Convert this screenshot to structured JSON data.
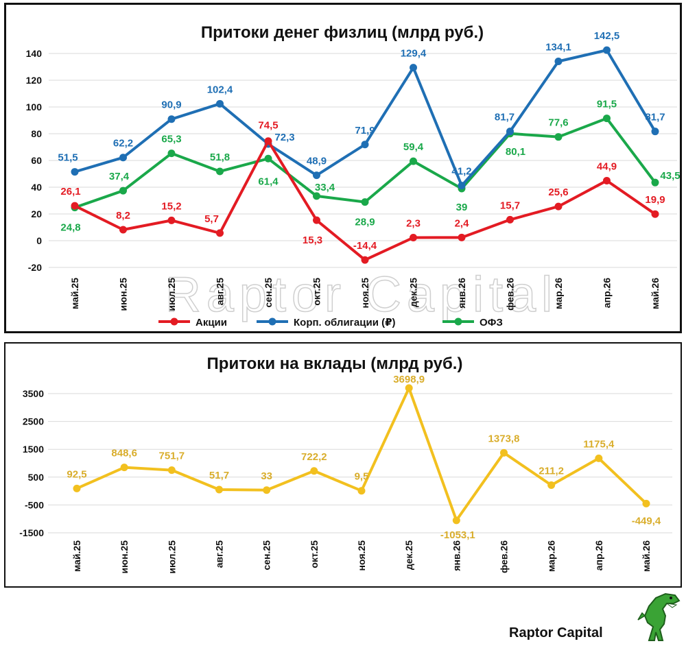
{
  "chart_data": [
    {
      "type": "line",
      "title": "Притоки денег физлиц (млрд руб.)",
      "categories": [
        "май.25",
        "июн.25",
        "июл.25",
        "авг.25",
        "сен.25",
        "окт.25",
        "ноя.25",
        "дек.25",
        "янв.26",
        "фев.26",
        "мар.26",
        "апр.26",
        "май.26"
      ],
      "ylim": [
        -20,
        140
      ],
      "yticks": [
        "-20",
        "0",
        "20",
        "40",
        "60",
        "80",
        "100",
        "120",
        "140"
      ],
      "grid": true,
      "legend": "bottom",
      "series": [
        {
          "name": "Акции",
          "color": "#e31b23",
          "values": [
            26.1,
            8.2,
            15.2,
            5.7,
            74.5,
            15.3,
            -14.4,
            2.3,
            2.4,
            15.7,
            25.6,
            44.9,
            19.9
          ],
          "labels": [
            "26,1",
            "8,2",
            "15,2",
            "5,7",
            "74,5",
            "15,3",
            "-14,4",
            "2,3",
            "2,4",
            "15,7",
            "25,6",
            "44,9",
            "19,9"
          ]
        },
        {
          "name": "Корп. облигации (₽)",
          "color": "#1f6fb4",
          "values": [
            51.5,
            62.2,
            90.9,
            102.4,
            72.3,
            48.9,
            71.9,
            129.4,
            41.2,
            81.7,
            134.1,
            142.5,
            81.7
          ],
          "labels": [
            "51,5",
            "62,2",
            "90,9",
            "102,4",
            "72,3",
            "48,9",
            "71,9",
            "129,4",
            "41,2",
            "81,7",
            "134,1",
            "142,5",
            "81,7"
          ]
        },
        {
          "name": "ОФЗ",
          "color": "#1aa84a",
          "values": [
            24.8,
            37.4,
            65.3,
            51.8,
            61.4,
            33.4,
            28.9,
            59.4,
            39,
            80.1,
            77.6,
            91.5,
            43.5
          ],
          "labels": [
            "24,8",
            "37,4",
            "65,3",
            "51,8",
            "61,4",
            "33,4",
            "28,9",
            "59,4",
            "39",
            "80,1",
            "77,6",
            "91,5",
            "43,5"
          ]
        }
      ]
    },
    {
      "type": "line",
      "title": "Притоки на вклады (млрд руб.)",
      "categories": [
        "май.25",
        "июн.25",
        "июл.25",
        "авг.25",
        "сен.25",
        "окт.25",
        "ноя.25",
        "дек.25",
        "янв.26",
        "фев.26",
        "мар.26",
        "апр.26",
        "май.26"
      ],
      "ylim": [
        -1500,
        3500
      ],
      "yticks": [
        "-1500",
        "-500",
        "500",
        "1500",
        "2500",
        "3500"
      ],
      "grid": true,
      "series": [
        {
          "color": "#f2c01f",
          "values": [
            92.5,
            848.6,
            751.7,
            51.7,
            33,
            722.2,
            9.5,
            3698.9,
            -1053.1,
            1373.8,
            211.2,
            1175.4,
            -449.4
          ],
          "labels": [
            "92,5",
            "848,6",
            "751,7",
            "51,7",
            "33",
            "722,2",
            "9,5",
            "3698,9",
            "-1053,1",
            "1373,8",
            "211,2",
            "1175,4",
            "-449,4"
          ],
          "label_color": "#d9ad2b"
        }
      ]
    }
  ],
  "watermark": "Raptor Capital",
  "brand": "Raptor Capital"
}
